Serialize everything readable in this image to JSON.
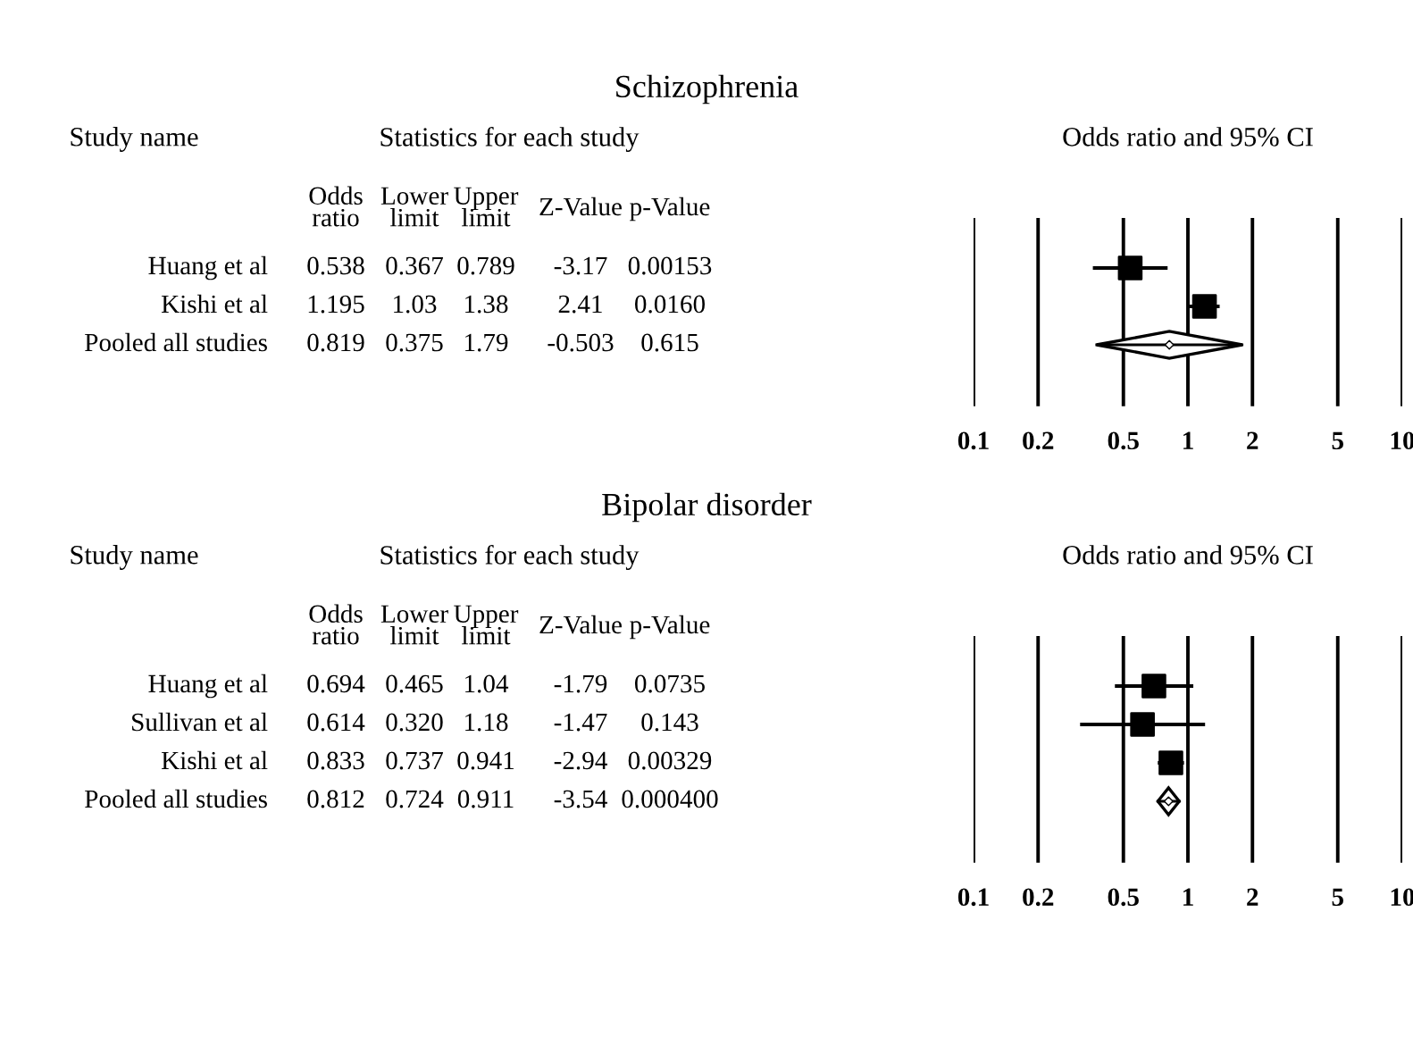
{
  "chart_data": [
    {
      "type": "scatter",
      "orientation": "horizontal",
      "title": "Schizophrenia",
      "log": "x",
      "xlim": [
        0.1,
        10
      ],
      "xticks": [
        0.1,
        0.2,
        0.5,
        1,
        2,
        5,
        10
      ],
      "grid": "x",
      "tick_labels": "x",
      "categories": [
        "Huang et al",
        "Kishi et al",
        "Pooled all studies"
      ],
      "series": [
        {
          "marker": "square",
          "color": "#000000",
          "values": [
            0.538,
            1.195,
            null
          ],
          "errors": [
            [
              0.367,
              0.789
            ],
            [
              1.03,
              1.38
            ],
            null
          ]
        },
        {
          "marker": "diamond",
          "color": "#000000",
          "values": [
            null,
            null,
            0.819
          ],
          "errors": [
            null,
            null,
            [
              0.375,
              1.79
            ]
          ]
        }
      ],
      "annotations": [
        "Study name",
        "Statistics for each study",
        "Odds ratio and 95% CI",
        "Odds\nratio",
        "Lower\nlimit",
        "Upper\nlimit",
        "Z-Value",
        "p-Value",
        "0.538",
        "0.367",
        "0.789",
        "-3.17",
        "0.00153",
        "1.195",
        "1.03",
        "1.38",
        "2.41",
        "0.0160",
        "0.819",
        "0.375",
        "1.79",
        "-0.503",
        "0.615"
      ]
    },
    {
      "type": "scatter",
      "orientation": "horizontal",
      "title": "Bipolar disorder",
      "log": "x",
      "xlim": [
        0.1,
        10
      ],
      "xticks": [
        0.1,
        0.2,
        0.5,
        1,
        2,
        5,
        10
      ],
      "grid": "x",
      "tick_labels": "x",
      "categories": [
        "Huang et al",
        "Sullivan et al",
        "Kishi et al",
        "Pooled all studies"
      ],
      "series": [
        {
          "marker": "square",
          "color": "#000000",
          "values": [
            0.694,
            0.614,
            0.833,
            null
          ],
          "errors": [
            [
              0.465,
              1.04
            ],
            [
              0.32,
              1.18
            ],
            [
              0.737,
              0.941
            ],
            null
          ]
        },
        {
          "marker": "diamond",
          "color": "#000000",
          "values": [
            null,
            null,
            null,
            0.812
          ],
          "errors": [
            null,
            null,
            null,
            [
              0.724,
              0.911
            ]
          ]
        }
      ],
      "annotations": [
        "Study name",
        "Statistics for each study",
        "Odds ratio and 95% CI",
        "Odds\nratio",
        "Lower\nlimit",
        "Upper\nlimit",
        "Z-Value",
        "p-Value",
        "0.694",
        "0.465",
        "1.04",
        "-1.79",
        "0.0735",
        "0.614",
        "0.320",
        "1.18",
        "-1.47",
        "0.143",
        "0.833",
        "0.737",
        "0.941",
        "-2.94",
        "0.00329",
        "0.812",
        "0.724",
        "0.911",
        "-3.54",
        "0.000400"
      ]
    }
  ]
}
